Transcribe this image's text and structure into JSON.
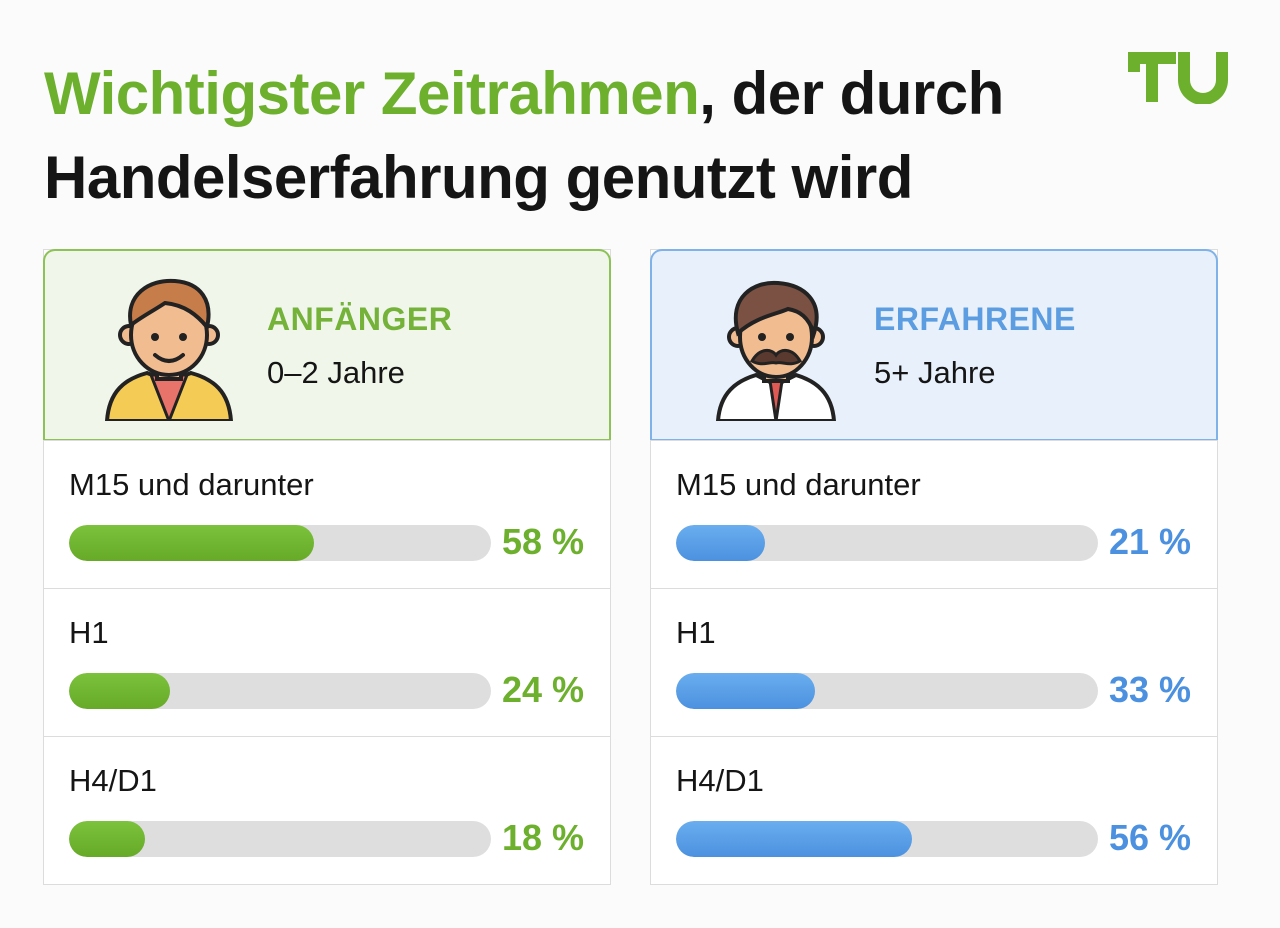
{
  "header": {
    "title_highlight": "Wichtigster Zeitrahmen",
    "title_line1_rest": ", der durch",
    "title_line2": "Handelserfahrung genutzt wird",
    "logo_text": "TU"
  },
  "colors": {
    "beginner_accent": "#6db02e",
    "expert_accent": "#4b91df",
    "track": "#dedede"
  },
  "icons": {
    "beginner": "young-man-avatar-icon",
    "expert": "mustached-man-avatar-icon"
  },
  "chart_data": [
    {
      "type": "bar",
      "orientation": "horizontal",
      "title": "ANFÄNGER",
      "subtitle": "0–2 Jahre",
      "categories": [
        "M15 und darunter",
        "H1",
        "H4/D1"
      ],
      "values": [
        58,
        24,
        18
      ],
      "labels": [
        "58 %",
        "24 %",
        "18 %"
      ],
      "unit": "%",
      "xlim": [
        0,
        100
      ],
      "color": "#6db02e"
    },
    {
      "type": "bar",
      "orientation": "horizontal",
      "title": "ERFAHRENE",
      "subtitle": "5+ Jahre",
      "categories": [
        "M15 und darunter",
        "H1",
        "H4/D1"
      ],
      "values": [
        21,
        33,
        56
      ],
      "labels": [
        "21 %",
        "33 %",
        "56 %"
      ],
      "unit": "%",
      "xlim": [
        0,
        100
      ],
      "color": "#4b91df"
    }
  ]
}
